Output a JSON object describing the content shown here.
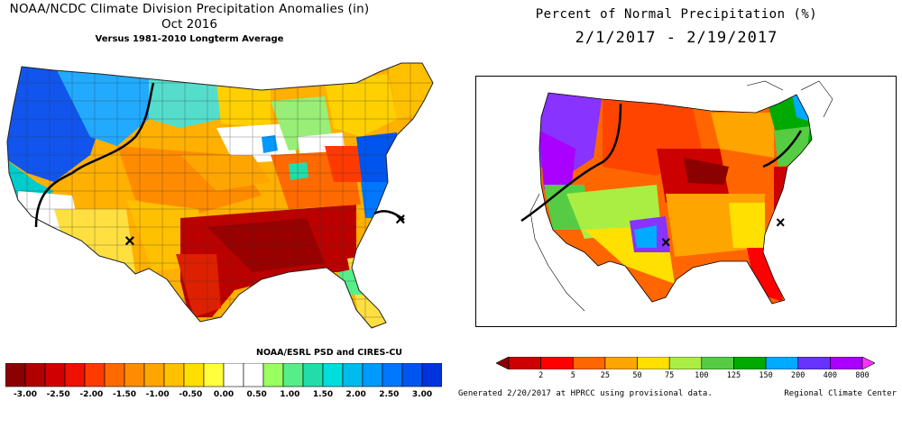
{
  "left": {
    "title_line1": "NOAA/NCDC Climate Division Precipitation Anomalies (in)",
    "title_line2": "Oct 2016",
    "subtitle": "Versus 1981-2010 Longterm Average",
    "credit": "NOAA/ESRL PSD and CIRES-CU",
    "legend": {
      "labels": [
        "-3.00",
        "-2.50",
        "-2.00",
        "-1.50",
        "-1.00",
        "-0.50",
        "0.00",
        "0.50",
        "1.00",
        "1.50",
        "2.00",
        "2.50",
        "3.00"
      ],
      "colors": [
        "#8b0000",
        "#b00000",
        "#d00000",
        "#ee1000",
        "#ff3a00",
        "#ff6a00",
        "#ff8c00",
        "#ffa500",
        "#ffc000",
        "#ffdf00",
        "#ffff40",
        "#ffffff",
        "#ffffff",
        "#9aff60",
        "#55ee88",
        "#22ddaa",
        "#00dddd",
        "#00bbee",
        "#0099ff",
        "#0077ff",
        "#0055ee",
        "#0033dd"
      ]
    }
  },
  "right": {
    "title_line1": "Percent of Normal Precipitation (%)",
    "title_line2": "2/1/2017 - 2/19/2017",
    "legend": {
      "labels": [
        "2",
        "5",
        "25",
        "50",
        "75",
        "100",
        "125",
        "150",
        "200",
        "400",
        "800"
      ],
      "colors": [
        "#8b0000",
        "#cc0000",
        "#ff0000",
        "#ff6600",
        "#ffa500",
        "#ffe000",
        "#aaee44",
        "#55cc44",
        "#00aa00",
        "#00aaff",
        "#6633ff",
        "#aa00ff",
        "#ff33ff"
      ]
    },
    "footer_left": "Generated 2/20/2017 at HPRCC using provisional data.",
    "footer_right": "Regional Climate Center"
  }
}
